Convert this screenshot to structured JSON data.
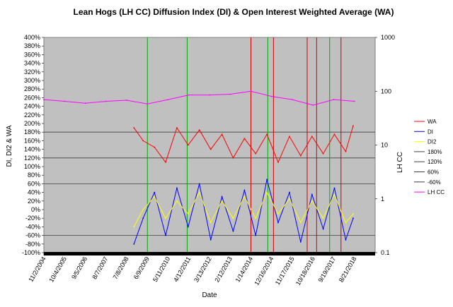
{
  "chart_data": {
    "type": "line",
    "title": "Lean Hogs (LH CC) Diffusion Index (DI) & Open Interest Weighted Average (WA)",
    "xlabel": "Date",
    "ylabel": "DI, DI2 & WA",
    "y2label": "LH CC",
    "ylim": [
      -100,
      400
    ],
    "y_ticks": [
      "-100%",
      "-80%",
      "-60%",
      "-40%",
      "-20%",
      "0%",
      "20%",
      "40%",
      "60%",
      "80%",
      "100%",
      "120%",
      "140%",
      "160%",
      "180%",
      "200%",
      "220%",
      "240%",
      "260%",
      "280%",
      "300%",
      "320%",
      "340%",
      "360%",
      "380%",
      "400%"
    ],
    "y2_scale": "log",
    "y2lim": [
      0.1,
      1000
    ],
    "y2_ticks": [
      "0.1",
      "1",
      "10",
      "100",
      "1000"
    ],
    "x_ticks": [
      "11/2/2004",
      "10/4/2005",
      "9/5/2006",
      "8/7/2007",
      "7/8/2008",
      "6/9/2009",
      "5/11/2010",
      "4/12/2011",
      "3/13/2012",
      "2/12/2013",
      "1/14/2014",
      "12/16/2014",
      "11/17/2015",
      "10/18/2016",
      "9/19/2017",
      "8/21/2018"
    ],
    "plot_background": "#c0c0c0",
    "grid": true,
    "legend_position": "right",
    "reference_lines": [
      {
        "name": "180%",
        "value": 180
      },
      {
        "name": "120%",
        "value": 120
      },
      {
        "name": "-60%",
        "value": -60
      },
      {
        "name": "60%",
        "value": 60
      }
    ],
    "vertical_markers": [
      {
        "x": "6/9/2009",
        "color": "#00aa00"
      },
      {
        "x": "3/16/2011",
        "color": "#00aa00"
      },
      {
        "x": "1/14/2014",
        "color": "#cc0000"
      },
      {
        "x": "10/15/2014",
        "color": "#00aa00"
      },
      {
        "x": "1/15/2015",
        "color": "#cc0000"
      },
      {
        "x": "7/15/2016",
        "color": "#cc0000"
      },
      {
        "x": "12/15/2016",
        "color": "#cc0000"
      },
      {
        "x": "7/15/2017",
        "color": "#00aa00"
      },
      {
        "x": "1/15/2018",
        "color": "#cc0000"
      }
    ],
    "series": [
      {
        "name": "WA",
        "color": "#ff0000",
        "axis": "left",
        "x": [
          "11/2/2008",
          "4/1/2009",
          "10/1/2009",
          "4/1/2010",
          "10/1/2010",
          "4/1/2011",
          "10/1/2011",
          "4/1/2012",
          "10/1/2012",
          "4/1/2013",
          "10/1/2013",
          "4/1/2014",
          "10/1/2014",
          "4/1/2015",
          "10/1/2015",
          "4/1/2016",
          "10/1/2016",
          "4/1/2017",
          "10/1/2017",
          "4/1/2018",
          "8/1/2018"
        ],
        "values": [
          190,
          160,
          145,
          110,
          190,
          150,
          185,
          140,
          175,
          120,
          165,
          130,
          175,
          110,
          170,
          125,
          170,
          130,
          175,
          135,
          195
        ]
      },
      {
        "name": "DI",
        "color": "#0000ff",
        "axis": "left",
        "x": [
          "11/2/2008",
          "4/1/2009",
          "10/1/2009",
          "4/1/2010",
          "10/1/2010",
          "4/1/2011",
          "10/1/2011",
          "4/1/2012",
          "10/1/2012",
          "4/1/2013",
          "10/1/2013",
          "4/1/2014",
          "10/1/2014",
          "4/1/2015",
          "10/1/2015",
          "4/1/2016",
          "10/1/2016",
          "4/1/2017",
          "10/1/2017",
          "4/1/2018",
          "8/1/2018"
        ],
        "values": [
          -80,
          -20,
          40,
          -60,
          50,
          -40,
          60,
          -70,
          30,
          -50,
          45,
          -60,
          70,
          -30,
          40,
          -75,
          35,
          -45,
          50,
          -70,
          -20
        ]
      },
      {
        "name": "DI2",
        "color": "#ffff00",
        "axis": "left",
        "x": [
          "11/2/2008",
          "4/1/2009",
          "10/1/2009",
          "4/1/2010",
          "10/1/2010",
          "4/1/2011",
          "10/1/2011",
          "4/1/2012",
          "10/1/2012",
          "4/1/2013",
          "10/1/2013",
          "4/1/2014",
          "10/1/2014",
          "4/1/2015",
          "10/1/2015",
          "4/1/2016",
          "10/1/2016",
          "4/1/2017",
          "10/1/2017",
          "4/1/2018",
          "8/1/2018"
        ],
        "values": [
          -40,
          0,
          30,
          -20,
          20,
          -10,
          40,
          -30,
          20,
          -20,
          30,
          -20,
          40,
          -10,
          25,
          -30,
          20,
          -20,
          35,
          -30,
          -10
        ]
      },
      {
        "name": "LH CC",
        "color": "#ff00ff",
        "axis": "right",
        "x": [
          "11/2/2004",
          "10/4/2005",
          "9/5/2006",
          "8/7/2007",
          "7/8/2008",
          "6/9/2009",
          "5/11/2010",
          "4/12/2011",
          "3/13/2012",
          "2/12/2013",
          "1/14/2014",
          "12/16/2014",
          "11/17/2015",
          "10/18/2016",
          "9/19/2017",
          "8/21/2018"
        ],
        "values": [
          70,
          65,
          60,
          65,
          68,
          58,
          70,
          85,
          85,
          88,
          100,
          80,
          70,
          55,
          70,
          65
        ]
      }
    ],
    "legend": [
      "WA",
      "DI",
      "DI2",
      "180%",
      "120%",
      "60%",
      "-60%",
      "LH CC"
    ]
  }
}
